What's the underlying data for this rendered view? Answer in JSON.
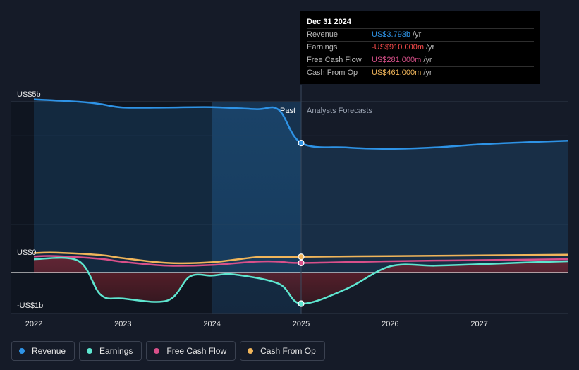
{
  "tooltip": {
    "date": "Dec 31 2024",
    "rows": [
      {
        "label": "Revenue",
        "value": "US$3.793b",
        "unit": "/yr",
        "color": "#2e93e6"
      },
      {
        "label": "Earnings",
        "value": "-US$910.000m",
        "unit": "/yr",
        "color": "#ff4d4d"
      },
      {
        "label": "Free Cash Flow",
        "value": "US$281.000m",
        "unit": "/yr",
        "color": "#d9508a"
      },
      {
        "label": "Cash From Op",
        "value": "US$461.000m",
        "unit": "/yr",
        "color": "#f0b55a"
      }
    ]
  },
  "legend": [
    {
      "label": "Revenue",
      "color": "#2e93e6"
    },
    {
      "label": "Earnings",
      "color": "#5ee6d0"
    },
    {
      "label": "Free Cash Flow",
      "color": "#d9508a"
    },
    {
      "label": "Cash From Op",
      "color": "#f0b55a"
    }
  ],
  "chart_data": {
    "type": "line",
    "title": "",
    "units": "USD billions",
    "ylim": [
      -1.2,
      5.0
    ],
    "xlim": [
      2022.0,
      2028.0
    ],
    "y_tick_labels": [
      {
        "value": 5.0,
        "label": "US$5b"
      },
      {
        "value": 0.0,
        "label": "US$0"
      },
      {
        "value": -1.0,
        "label": "-US$1b"
      }
    ],
    "x_ticks": [
      2022,
      2023,
      2024,
      2025,
      2026,
      2027
    ],
    "x_tick_labels": [
      "2022",
      "2023",
      "2024",
      "2025",
      "2026",
      "2027"
    ],
    "past_label": "Past",
    "forecast_label": "Analysts Forecasts",
    "divider_x": 2025.0,
    "highlight_range": [
      2024.0,
      2025.0
    ],
    "series": [
      {
        "name": "Revenue",
        "color": "#2e93e6",
        "fill": true,
        "points": [
          [
            2022.0,
            5.07
          ],
          [
            2022.5,
            5.0
          ],
          [
            2022.75,
            4.93
          ],
          [
            2023.0,
            4.83
          ],
          [
            2023.5,
            4.83
          ],
          [
            2024.0,
            4.84
          ],
          [
            2024.5,
            4.78
          ],
          [
            2024.75,
            4.76
          ],
          [
            2025.0,
            3.79
          ],
          [
            2025.5,
            3.66
          ],
          [
            2026.0,
            3.62
          ],
          [
            2026.5,
            3.66
          ],
          [
            2027.0,
            3.75
          ],
          [
            2027.5,
            3.81
          ],
          [
            2028.0,
            3.86
          ]
        ]
      },
      {
        "name": "Cash From Op",
        "color": "#f0b55a",
        "fill": false,
        "points": [
          [
            2022.0,
            0.57
          ],
          [
            2022.25,
            0.58
          ],
          [
            2022.75,
            0.51
          ],
          [
            2023.0,
            0.42
          ],
          [
            2023.5,
            0.28
          ],
          [
            2024.0,
            0.3
          ],
          [
            2024.5,
            0.45
          ],
          [
            2024.75,
            0.45
          ],
          [
            2025.0,
            0.46
          ],
          [
            2026.0,
            0.48
          ],
          [
            2027.0,
            0.5
          ],
          [
            2028.0,
            0.52
          ]
        ]
      },
      {
        "name": "Free Cash Flow",
        "color": "#d9508a",
        "fill": false,
        "points": [
          [
            2022.0,
            0.47
          ],
          [
            2022.25,
            0.48
          ],
          [
            2022.75,
            0.4
          ],
          [
            2023.0,
            0.31
          ],
          [
            2023.5,
            0.2
          ],
          [
            2024.0,
            0.22
          ],
          [
            2024.5,
            0.32
          ],
          [
            2024.75,
            0.32
          ],
          [
            2025.0,
            0.28
          ],
          [
            2026.0,
            0.33
          ],
          [
            2027.0,
            0.36
          ],
          [
            2028.0,
            0.39
          ]
        ]
      },
      {
        "name": "Earnings",
        "color": "#5ee6d0",
        "fill": true,
        "points": [
          [
            2022.0,
            0.39
          ],
          [
            2022.5,
            0.34
          ],
          [
            2022.75,
            -0.65
          ],
          [
            2023.0,
            -0.76
          ],
          [
            2023.5,
            -0.82
          ],
          [
            2023.75,
            -0.12
          ],
          [
            2024.0,
            -0.09
          ],
          [
            2024.25,
            -0.06
          ],
          [
            2024.75,
            -0.33
          ],
          [
            2025.0,
            -0.91
          ],
          [
            2025.5,
            -0.49
          ],
          [
            2026.0,
            0.18
          ],
          [
            2026.5,
            0.2
          ],
          [
            2027.0,
            0.24
          ],
          [
            2027.5,
            0.29
          ],
          [
            2028.0,
            0.33
          ]
        ]
      }
    ]
  }
}
